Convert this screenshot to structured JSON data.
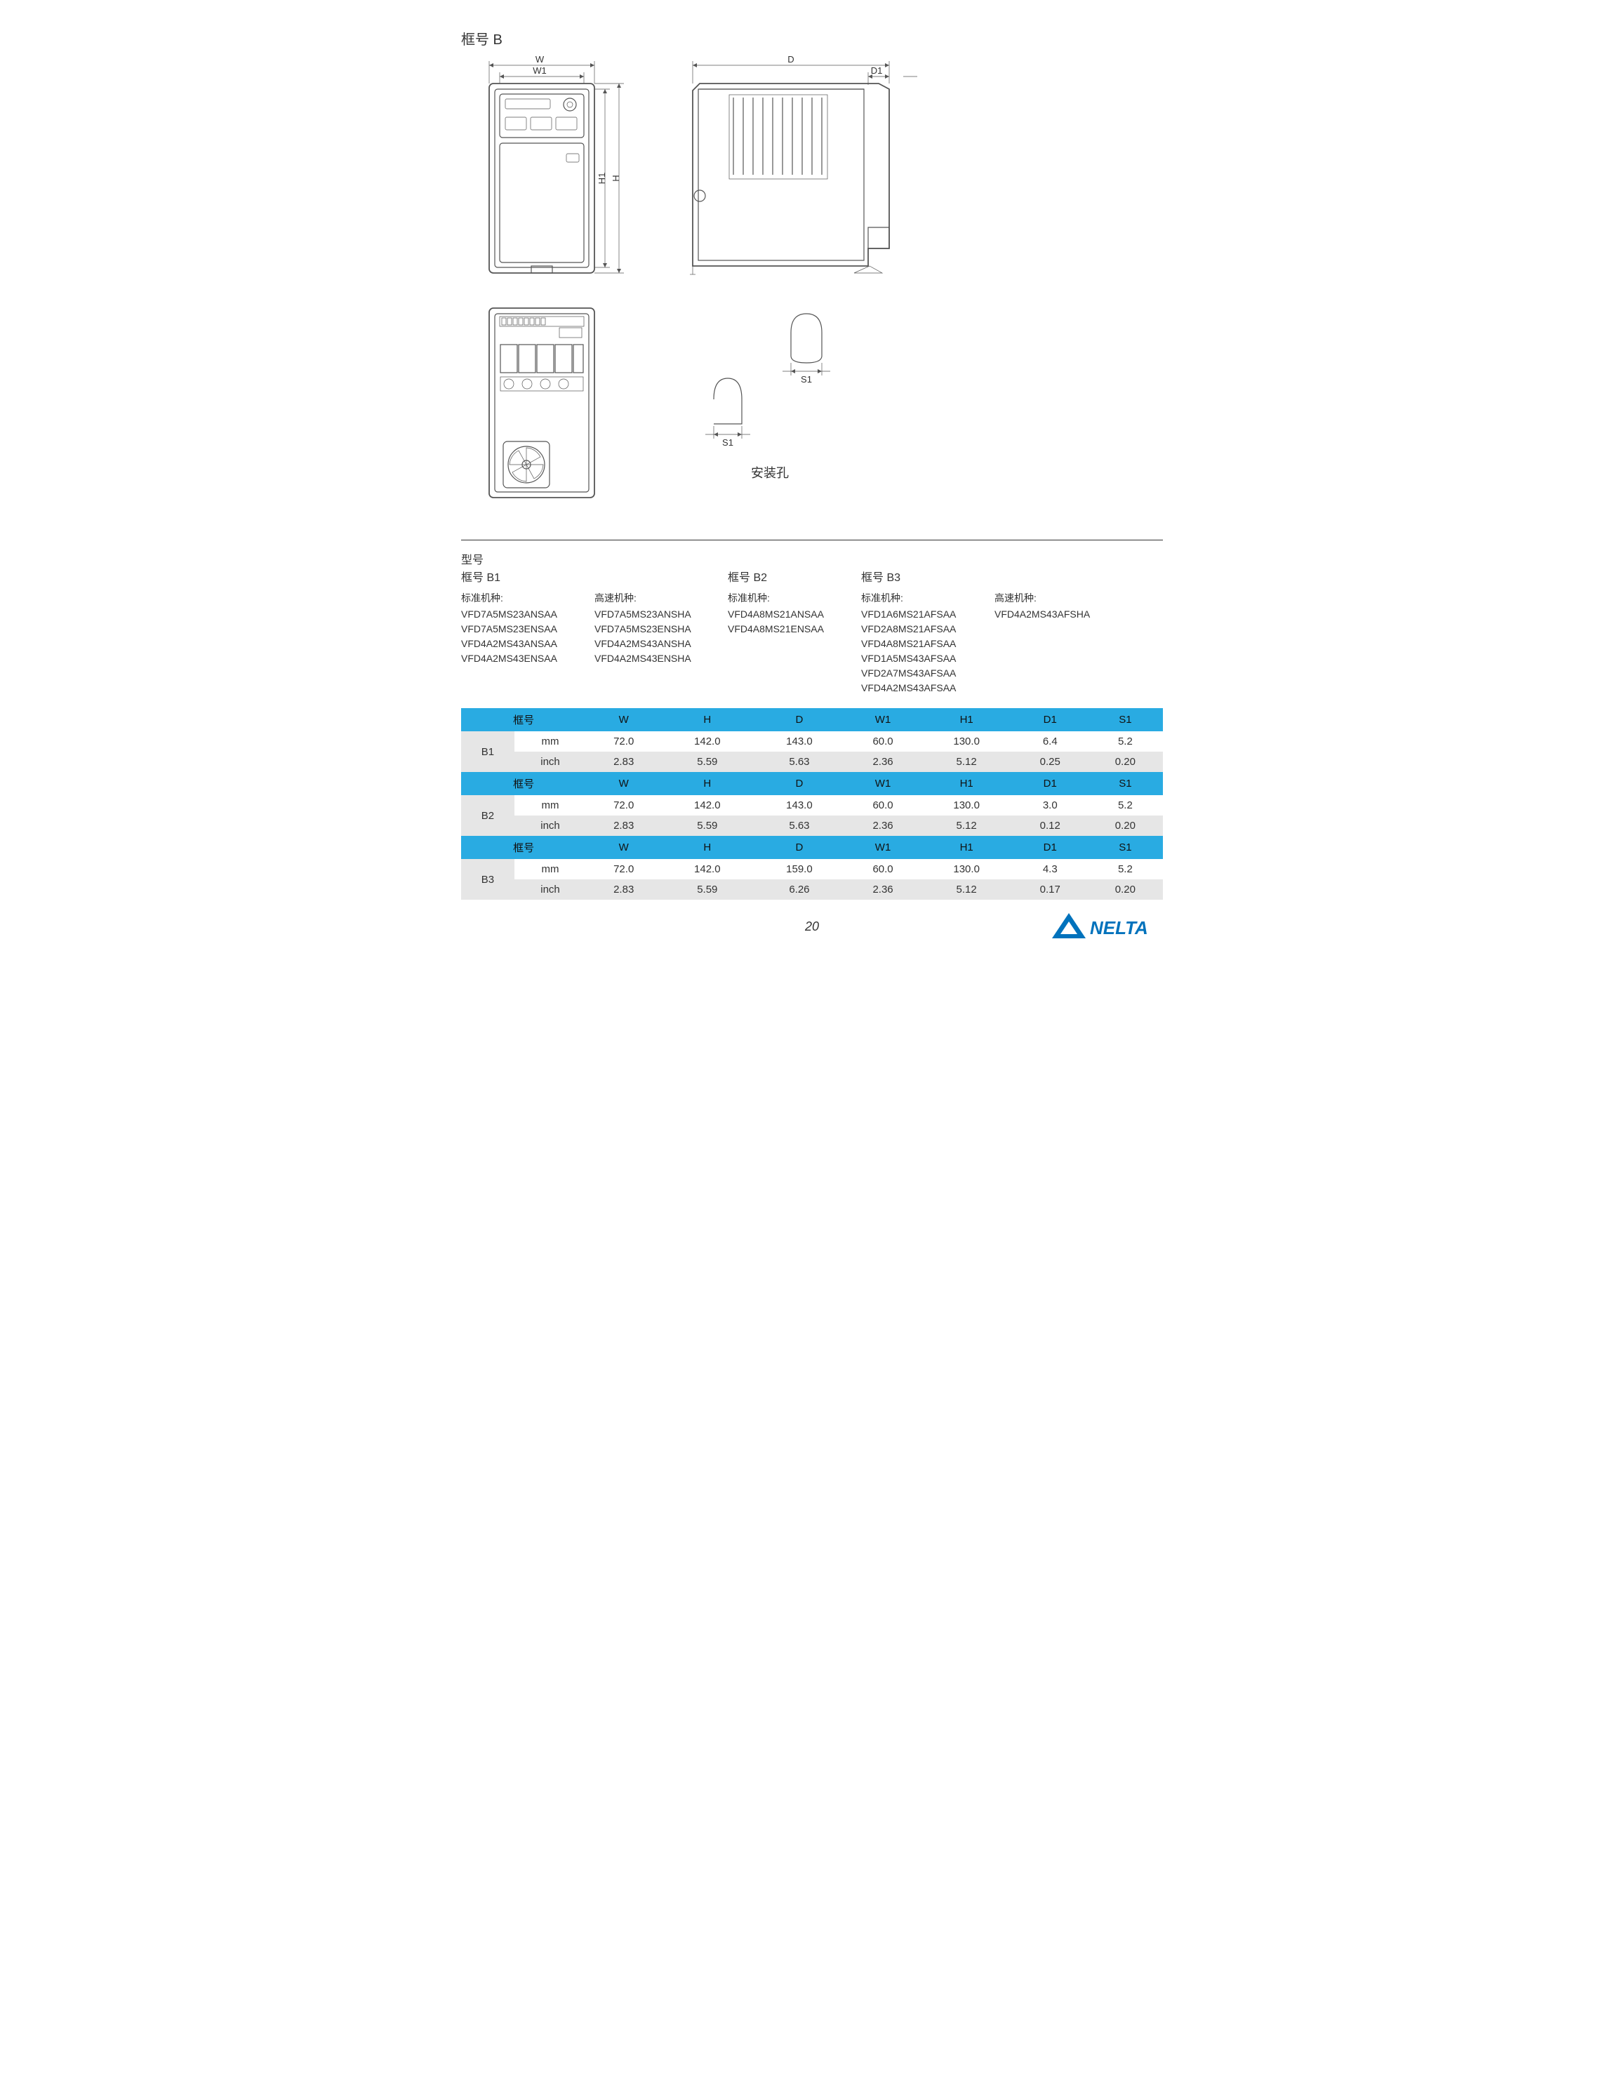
{
  "page": {
    "title": "框号 B",
    "mount_hole_label": "安装孔",
    "page_number": "20",
    "logo_text": "NELTA"
  },
  "dim_labels": {
    "W": "W",
    "W1": "W1",
    "D": "D",
    "D1": "D1",
    "H": "H",
    "H1": "H1",
    "S1": "S1"
  },
  "model_section": {
    "heading": "型号",
    "frame_b1": "框号 B1",
    "frame_b2": "框号 B2",
    "frame_b3": "框号 B3",
    "std_label": "标准机种:",
    "hs_label": "高速机种:",
    "b1_std": [
      "VFD7A5MS23ANSAA",
      "VFD7A5MS23ENSAA",
      "VFD4A2MS43ANSAA",
      "VFD4A2MS43ENSAA"
    ],
    "b1_hs": [
      "VFD7A5MS23ANSHA",
      "VFD7A5MS23ENSHA",
      "VFD4A2MS43ANSHA",
      "VFD4A2MS43ENSHA"
    ],
    "b2_std": [
      "VFD4A8MS21ANSAA",
      "VFD4A8MS21ENSAA"
    ],
    "b3_std": [
      "VFD1A6MS21AFSAA",
      "VFD2A8MS21AFSAA",
      "VFD4A8MS21AFSAA",
      "VFD1A5MS43AFSAA",
      "VFD2A7MS43AFSAA",
      "VFD4A2MS43AFSAA"
    ],
    "b3_hs": [
      "VFD4A2MS43AFSHA"
    ]
  },
  "table": {
    "frame_label": "框号",
    "unit_mm": "mm",
    "unit_inch": "inch",
    "headers": [
      "W",
      "H",
      "D",
      "W1",
      "H1",
      "D1",
      "S1"
    ],
    "groups": [
      {
        "frame": "B1",
        "mm": [
          "72.0",
          "142.0",
          "143.0",
          "60.0",
          "130.0",
          "6.4",
          "5.2"
        ],
        "inch": [
          "2.83",
          "5.59",
          "5.63",
          "2.36",
          "5.12",
          "0.25",
          "0.20"
        ]
      },
      {
        "frame": "B2",
        "mm": [
          "72.0",
          "142.0",
          "143.0",
          "60.0",
          "130.0",
          "3.0",
          "5.2"
        ],
        "inch": [
          "2.83",
          "5.59",
          "5.63",
          "2.36",
          "5.12",
          "0.12",
          "0.20"
        ]
      },
      {
        "frame": "B3",
        "mm": [
          "72.0",
          "142.0",
          "159.0",
          "60.0",
          "130.0",
          "4.3",
          "5.2"
        ],
        "inch": [
          "2.83",
          "5.59",
          "6.26",
          "2.36",
          "5.12",
          "0.17",
          "0.20"
        ]
      }
    ],
    "colors": {
      "header_bg": "#29abe2",
      "rowA_bg": "#ffffff",
      "rowB_bg": "#e6e6e6"
    }
  }
}
